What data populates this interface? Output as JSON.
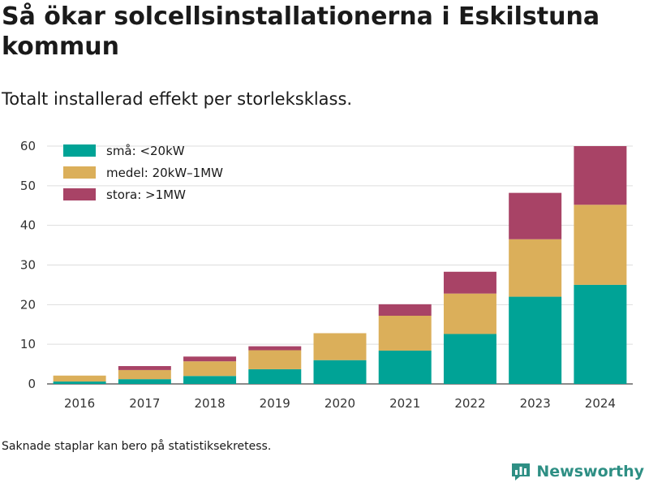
{
  "title": "Så ökar solcellsinstallationerna i Eskilstuna kommun",
  "subtitle": "Totalt installerad effekt per storleksklass.",
  "note": "Saknade staplar kan bero på statistiksekretess.",
  "brand": {
    "name": "Newsworthy",
    "logo_icon": "bar-chart-logo-icon",
    "color": "#2e8f84"
  },
  "chart_data": {
    "type": "bar",
    "stacked": true,
    "categories": [
      "2016",
      "2017",
      "2018",
      "2019",
      "2020",
      "2021",
      "2022",
      "2023",
      "2024"
    ],
    "series": [
      {
        "name": "små: <20kW",
        "color": "#00a396",
        "values": [
          0.6,
          1.2,
          2.0,
          3.7,
          6.0,
          8.4,
          12.6,
          22.0,
          25.0
        ]
      },
      {
        "name": "medel: 20kW–1MW",
        "color": "#dbaf5a",
        "values": [
          1.5,
          2.3,
          3.7,
          4.8,
          6.8,
          8.8,
          10.2,
          14.5,
          20.2
        ]
      },
      {
        "name": "stora: >1MW",
        "color": "#a84366",
        "values": [
          0.0,
          1.0,
          1.2,
          1.0,
          0.0,
          2.9,
          5.5,
          11.7,
          14.8
        ]
      }
    ],
    "ylim": [
      0,
      60
    ],
    "yticks": [
      0,
      10,
      20,
      30,
      40,
      50,
      60
    ],
    "grid": true,
    "legend": "top-left",
    "xlabel": "",
    "ylabel": ""
  }
}
